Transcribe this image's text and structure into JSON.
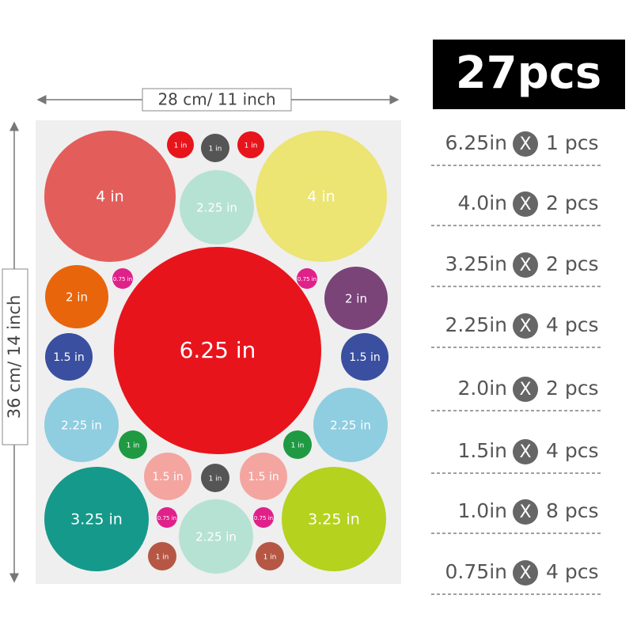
{
  "header": {
    "title": "27pcs"
  },
  "dimensions": {
    "width": "28 cm/ 11 inch",
    "height": "36 cm/ 14 inch"
  },
  "circles": [
    "4 in",
    "1 in",
    "1 in",
    "1 in",
    "4 in",
    "2.25 in",
    "2 in",
    "0.75 in",
    "6.25 in",
    "0.75 in",
    "2 in",
    "1.5 in",
    "1.5 in",
    "2.25 in",
    "2.25 in",
    "1 in",
    "1 in",
    "1.5 in",
    "1 in",
    "1.5 in",
    "3.25 in",
    "0.75 in",
    "2.25 in",
    "0.75 in",
    "3.25 in",
    "1 in",
    "1 in"
  ],
  "separator": "X",
  "items": [
    {
      "size": "6.25in",
      "count": "1 pcs"
    },
    {
      "size": "4.0in",
      "count": "2 pcs"
    },
    {
      "size": "3.25in",
      "count": "2 pcs"
    },
    {
      "size": "2.25in",
      "count": "4 pcs"
    },
    {
      "size": "2.0in",
      "count": "2 pcs"
    },
    {
      "size": "1.5in",
      "count": "4 pcs"
    },
    {
      "size": "1.0in",
      "count": "8 pcs"
    },
    {
      "size": "0.75in",
      "count": "4 pcs"
    }
  ]
}
